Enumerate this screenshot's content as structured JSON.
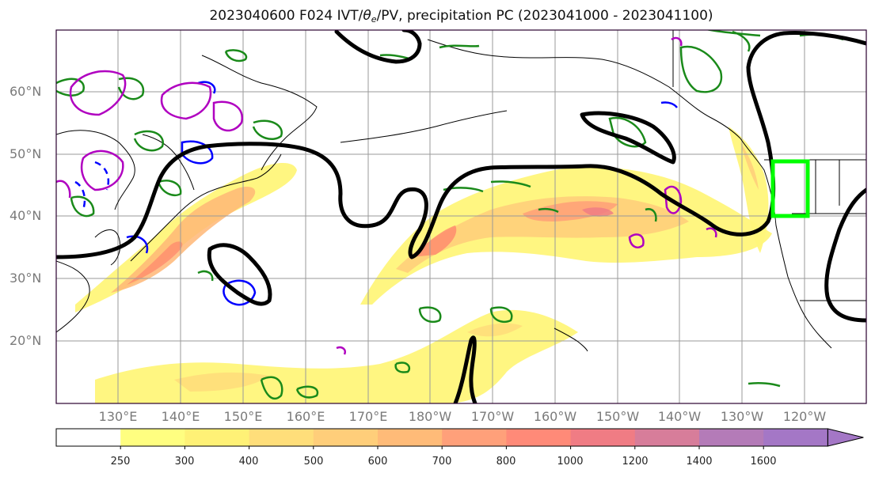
{
  "title": {
    "prefix": "2023040600 F024 IVT/",
    "theta": "θ",
    "theta_sub": "e",
    "suffix": "/PV, precipitation PC (2023041000 - 2023041100)"
  },
  "lat_labels": [
    "60°N",
    "50°N",
    "40°N",
    "30°N",
    "20°N"
  ],
  "lon_labels": [
    "130°E",
    "140°E",
    "150°E",
    "160°E",
    "170°E",
    "180°W",
    "170°W",
    "160°W",
    "150°W",
    "140°W",
    "130°W",
    "120°W"
  ],
  "colorbar": {
    "ticks": [
      "250",
      "300",
      "400",
      "500",
      "600",
      "700",
      "800",
      "1000",
      "1200",
      "1400",
      "1600"
    ],
    "colors": [
      "#ffffff",
      "#fffe80",
      "#fff176",
      "#ffde7a",
      "#ffce7a",
      "#ffbb78",
      "#ffa07a",
      "#ff8a78",
      "#f07c84",
      "#d77d9a",
      "#b47bb8",
      "#a477c6"
    ]
  },
  "colors": {
    "ivt_fill": "#ffe873",
    "ivt_core": "#ff8c6e",
    "pv_contour": "#000000",
    "theta_pos": "#1a8a1a",
    "theta_neg": "#0000ff",
    "pv_magenta": "#b000c0",
    "target_box": "#00ff00"
  }
}
